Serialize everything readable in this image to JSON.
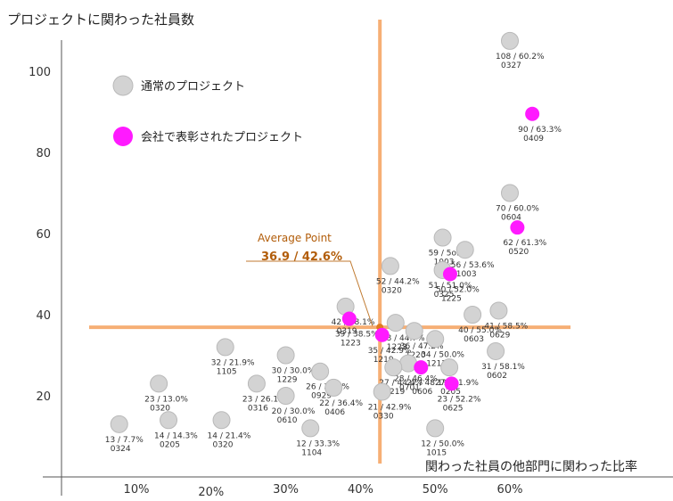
{
  "chart_data": {
    "type": "scatter",
    "title": "",
    "ylabel": "プロジェクトに関わった社員数",
    "xlabel": "関わった社員の他部門に関わった比率",
    "x_ticks": [
      "10%",
      "20%",
      "30%",
      "40%",
      "50%",
      "60%"
    ],
    "y_ticks": [
      "20",
      "40",
      "60",
      "80",
      "100"
    ],
    "xlim": [
      0.03,
      0.68
    ],
    "ylim": [
      0,
      115
    ],
    "legend": [
      {
        "name": "通常のプロジェクト",
        "color": "#d3d3d3"
      },
      {
        "name": "会社で表彰されたプロジェクト",
        "color": "#ff1aff"
      }
    ],
    "average": {
      "label": "Average Point",
      "value": "36.9 / 42.6%",
      "x": 0.426,
      "y": 36.9
    },
    "colors": {
      "normal": "#d3d3d3",
      "normal_stroke": "#b9b9b9",
      "award": "#ff1aff",
      "avg_line": "#f5a25d"
    },
    "points": [
      {
        "x": 0.6,
        "y": 107.5,
        "award": false,
        "l1": "108 / 60.2%",
        "l2": "0327"
      },
      {
        "x": 0.63,
        "y": 89.5,
        "award": true,
        "l1": "90 / 63.3%",
        "l2": "0409"
      },
      {
        "x": 0.6,
        "y": 70,
        "award": false,
        "l1": "70 / 60.0%",
        "l2": "0604"
      },
      {
        "x": 0.61,
        "y": 61.5,
        "award": true,
        "l1": "62 / 61.3%",
        "l2": "0520"
      },
      {
        "x": 0.51,
        "y": 59,
        "award": false,
        "l1": "59 / 5o.8%",
        "l2": "1003"
      },
      {
        "x": 0.54,
        "y": 56,
        "award": false,
        "l1": "56 / 53.6%",
        "l2": "1003"
      },
      {
        "x": 0.44,
        "y": 52,
        "award": false,
        "l1": "52 / 44.2%",
        "l2": "0320"
      },
      {
        "x": 0.51,
        "y": 51,
        "award": false,
        "l1": "51 / 51.0%",
        "l2": "0325"
      },
      {
        "x": 0.52,
        "y": 50,
        "award": true,
        "l1": "50 / 52.0%",
        "l2": "1225"
      },
      {
        "x": 0.55,
        "y": 40,
        "award": false,
        "l1": "40 / 55.0%",
        "l2": "0603"
      },
      {
        "x": 0.585,
        "y": 41,
        "award": false,
        "l1": "41 / 58.5%",
        "l2": "0629"
      },
      {
        "x": 0.38,
        "y": 42,
        "award": false,
        "l1": "42 / 38.1%",
        "l2": "0319"
      },
      {
        "x": 0.385,
        "y": 39,
        "award": true,
        "l1": "39 / 38.5%",
        "l2": "1223"
      },
      {
        "x": 0.447,
        "y": 38,
        "award": false,
        "l1": "38 / 44.7%",
        "l2": "1223"
      },
      {
        "x": 0.472,
        "y": 36,
        "award": false,
        "l1": "36 / 47.2%",
        "l2": "1220"
      },
      {
        "x": 0.429,
        "y": 35,
        "award": true,
        "l1": "35 / 42.9%",
        "l2": "1219"
      },
      {
        "x": 0.5,
        "y": 34,
        "award": false,
        "l1": "34 / 50.0%",
        "l2": "1212"
      },
      {
        "x": 0.464,
        "y": 28,
        "award": false,
        "l1": "28 / 46.4%",
        "l2": "0701"
      },
      {
        "x": 0.581,
        "y": 31,
        "award": false,
        "l1": "31 / 58.1%",
        "l2": "0602"
      },
      {
        "x": 0.219,
        "y": 32,
        "award": false,
        "l1": "32 / 21.9%",
        "l2": "1105"
      },
      {
        "x": 0.3,
        "y": 30,
        "award": false,
        "l1": "30 / 30.0%",
        "l2": "1229"
      },
      {
        "x": 0.346,
        "y": 26,
        "award": false,
        "l1": "26 / 34.6%",
        "l2": "0929"
      },
      {
        "x": 0.13,
        "y": 23,
        "award": false,
        "l1": "23 / 13.0%",
        "l2": "0320"
      },
      {
        "x": 0.261,
        "y": 23,
        "award": false,
        "l1": "23 / 26.1%",
        "l2": "0316"
      },
      {
        "x": 0.364,
        "y": 22,
        "award": false,
        "l1": "22 / 36.4%",
        "l2": "0406"
      },
      {
        "x": 0.444,
        "y": 27,
        "award": false,
        "l1": "27 / 44.4%",
        "l2": "1219"
      },
      {
        "x": 0.481,
        "y": 27,
        "award": true,
        "l1": "27 / 48.1%",
        "l2": "0606"
      },
      {
        "x": 0.519,
        "y": 27,
        "award": false,
        "l1": "27 / 51.9%",
        "l2": "0205"
      },
      {
        "x": 0.522,
        "y": 23,
        "award": true,
        "l1": "23 / 52.2%",
        "l2": "0625"
      },
      {
        "x": 0.429,
        "y": 21,
        "award": false,
        "l1": "21 / 42.9%",
        "l2": "0330"
      },
      {
        "x": 0.3,
        "y": 20,
        "award": false,
        "l1": "20 / 30.0%",
        "l2": "0610"
      },
      {
        "x": 0.077,
        "y": 13,
        "award": false,
        "l1": "13 / 7.7%",
        "l2": "0324"
      },
      {
        "x": 0.143,
        "y": 14,
        "award": false,
        "l1": "14 / 14.3%",
        "l2": "0205"
      },
      {
        "x": 0.214,
        "y": 14,
        "award": false,
        "l1": "14 / 21.4%",
        "l2": "0320"
      },
      {
        "x": 0.333,
        "y": 12,
        "award": false,
        "l1": "12 / 33.3%",
        "l2": "1104"
      },
      {
        "x": 0.5,
        "y": 12,
        "award": false,
        "l1": "12 / 50.0%",
        "l2": "1015"
      }
    ]
  }
}
